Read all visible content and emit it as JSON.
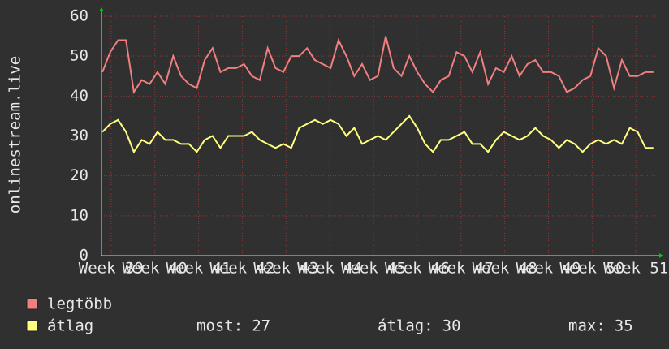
{
  "chart_data": {
    "type": "line",
    "ylabel": "onlinestream.live",
    "x": [
      38.8,
      38.98,
      39.16,
      39.34,
      39.52,
      39.7,
      39.88,
      40.06,
      40.24,
      40.42,
      40.6,
      40.78,
      40.96,
      41.14,
      41.32,
      41.5,
      41.68,
      41.86,
      42.04,
      42.22,
      42.4,
      42.58,
      42.76,
      42.94,
      43.12,
      43.3,
      43.48,
      43.66,
      43.84,
      44.02,
      44.2,
      44.38,
      44.56,
      44.74,
      44.92,
      45.1,
      45.28,
      45.46,
      45.64,
      45.82,
      46.0,
      46.18,
      46.36,
      46.54,
      46.72,
      46.9,
      47.08,
      47.26,
      47.44,
      47.62,
      47.8,
      47.98,
      48.16,
      48.34,
      48.52,
      48.7,
      48.88,
      49.06,
      49.24,
      49.42,
      49.6,
      49.78,
      49.96,
      50.14,
      50.32,
      50.5,
      50.68,
      50.86,
      51.04,
      51.22,
      51.4
    ],
    "series": [
      {
        "name": "legtöbb",
        "color": "#f08080",
        "values": [
          46,
          51,
          54,
          54,
          41,
          44,
          43,
          46,
          43,
          50,
          45,
          43,
          42,
          49,
          52,
          46,
          47,
          47,
          48,
          45,
          44,
          52,
          47,
          46,
          50,
          50,
          52,
          49,
          48,
          47,
          54,
          50,
          45,
          48,
          44,
          45,
          55,
          47,
          45,
          50,
          46,
          43,
          41,
          44,
          45,
          51,
          50,
          46,
          51,
          43,
          47,
          46,
          50,
          45,
          48,
          49,
          46,
          46,
          45,
          41,
          42,
          44,
          45,
          52,
          50,
          42,
          49,
          45,
          45,
          46,
          46
        ]
      },
      {
        "name": "átlag",
        "color": "#ffff80",
        "values": [
          31,
          33,
          34,
          31,
          26,
          29,
          28,
          31,
          29,
          29,
          28,
          28,
          26,
          29,
          30,
          27,
          30,
          30,
          30,
          31,
          29,
          28,
          27,
          28,
          27,
          32,
          33,
          34,
          33,
          34,
          33,
          30,
          32,
          28,
          29,
          30,
          29,
          31,
          33,
          35,
          32,
          28,
          26,
          29,
          29,
          30,
          31,
          28,
          28,
          26,
          29,
          31,
          30,
          29,
          30,
          32,
          30,
          29,
          27,
          29,
          28,
          26,
          28,
          29,
          28,
          29,
          28,
          32,
          31,
          27,
          27
        ]
      }
    ],
    "xlim": [
      38.78,
      51.46
    ],
    "xticks": [
      {
        "value": 39,
        "label": "Week 39"
      },
      {
        "value": 40,
        "label": "Week 40"
      },
      {
        "value": 41,
        "label": "Week 41"
      },
      {
        "value": 42,
        "label": "Week 42"
      },
      {
        "value": 43,
        "label": "Week 43"
      },
      {
        "value": 44,
        "label": "Week 44"
      },
      {
        "value": 45,
        "label": "Week 45"
      },
      {
        "value": 46,
        "label": "Week 46"
      },
      {
        "value": 47,
        "label": "Week 47"
      },
      {
        "value": 48,
        "label": "Week 48"
      },
      {
        "value": 49,
        "label": "Week 49"
      },
      {
        "value": 50,
        "label": "Week 50"
      },
      {
        "value": 51,
        "label": "Week 51"
      }
    ],
    "ylim": [
      0,
      60
    ],
    "yticks": [
      0,
      10,
      20,
      30,
      40,
      50,
      60
    ],
    "grid": true,
    "stats": [
      {
        "label": "most:",
        "value": 27
      },
      {
        "label": "átlag:",
        "value": 30
      },
      {
        "label": "max:",
        "value": 35
      }
    ]
  }
}
